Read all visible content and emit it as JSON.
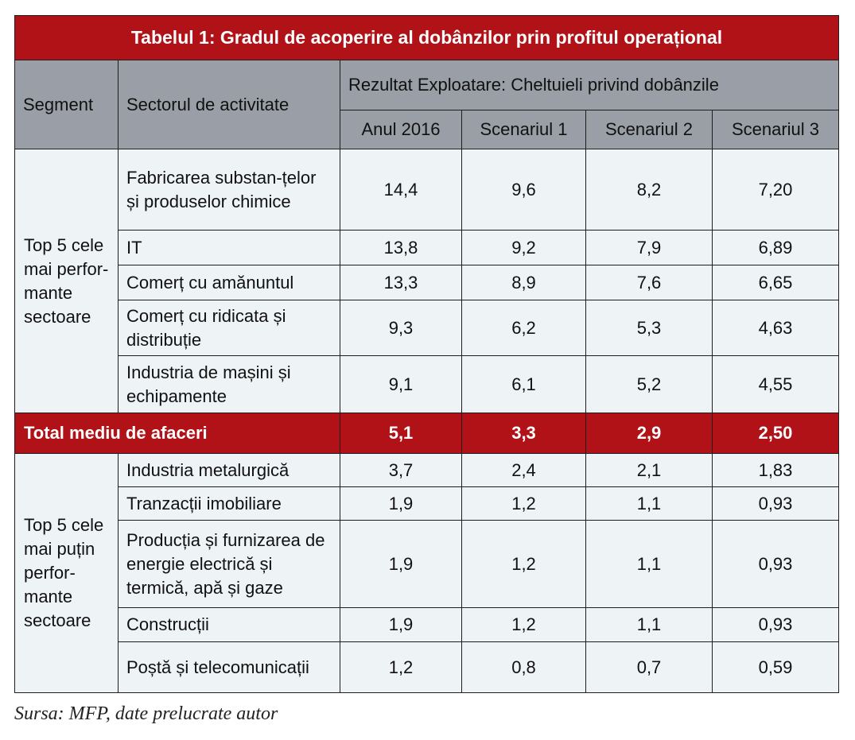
{
  "table": {
    "title": "Tabelul 1: Gradul de acoperire al dobânzilor prin profitul operațional",
    "headers": {
      "segment": "Segment",
      "sector": "Sectorul de activitate",
      "group": "Rezultat Exploatare: Cheltuieli privind dobânzile",
      "cols": [
        "Anul 2016",
        "Scenariul 1",
        "Scenariul 2",
        "Scenariul 3"
      ]
    },
    "top_segment": "Top 5 cele mai perfor-mante sectoare",
    "top_rows": [
      {
        "sector": "Fabricarea substan-țelor și produselor chimice",
        "values": [
          "14,4",
          "9,6",
          "8,2",
          "7,20"
        ]
      },
      {
        "sector": "IT",
        "values": [
          "13,8",
          "9,2",
          "7,9",
          "6,89"
        ]
      },
      {
        "sector": "Comerț cu amănuntul",
        "values": [
          "13,3",
          "8,9",
          "7,6",
          "6,65"
        ]
      },
      {
        "sector": "Comerț cu ridicata și distribuție",
        "values": [
          "9,3",
          "6,2",
          "5,3",
          "4,63"
        ]
      },
      {
        "sector": "Industria de mașini și echipamente",
        "values": [
          "9,1",
          "6,1",
          "5,2",
          "4,55"
        ]
      }
    ],
    "total": {
      "label": "Total mediu de afaceri",
      "values": [
        "5,1",
        "3,3",
        "2,9",
        "2,50"
      ]
    },
    "bottom_segment": "Top 5 cele mai puțin perfor-mante sectoare",
    "bottom_rows": [
      {
        "sector": "Industria metalurgică",
        "values": [
          "3,7",
          "2,4",
          "2,1",
          "1,83"
        ]
      },
      {
        "sector": "Tranzacții imobiliare",
        "values": [
          "1,9",
          "1,2",
          "1,1",
          "0,93"
        ]
      },
      {
        "sector": "Producția și furnizarea de energie electrică și termică, apă și gaze",
        "values": [
          "1,9",
          "1,2",
          "1,1",
          "0,93"
        ]
      },
      {
        "sector": "Construcții",
        "values": [
          "1,9",
          "1,2",
          "1,1",
          "0,93"
        ]
      },
      {
        "sector": "Poștă și telecomunicații",
        "values": [
          "1,2",
          "0,8",
          "0,7",
          "0,59"
        ]
      }
    ]
  },
  "source": "Sursa: MFP, date prelucrate autor"
}
